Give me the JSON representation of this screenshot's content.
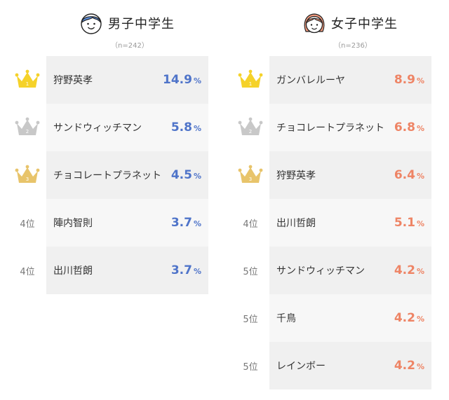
{
  "colors": {
    "gold": "#f5d22a",
    "silver": "#c8c8c8",
    "bronze": "#e8c46b",
    "boys_accent": "#4f74c9",
    "girls_accent": "#ee8465",
    "boy_icon": "#5a8fe0",
    "girl_icon": "#f29a7e"
  },
  "boys": {
    "title": "男子中学生",
    "sample": "（n=242）",
    "icon": "boy-face-icon",
    "rows": [
      {
        "rank_icon": "gold-crown-icon",
        "rank_label": "",
        "name": "狩野英孝",
        "pct": "14.9",
        "unit": "%"
      },
      {
        "rank_icon": "silver-crown-icon",
        "rank_label": "",
        "name": "サンドウィッチマン",
        "pct": "5.8",
        "unit": "%"
      },
      {
        "rank_icon": "bronze-crown-icon",
        "rank_label": "",
        "name": "チョコレートプラネット",
        "pct": "4.5",
        "unit": "%"
      },
      {
        "rank_icon": "",
        "rank_label": "4位",
        "name": "陣内智則",
        "pct": "3.7",
        "unit": "%"
      },
      {
        "rank_icon": "",
        "rank_label": "4位",
        "name": "出川哲朗",
        "pct": "3.7",
        "unit": "%"
      }
    ]
  },
  "girls": {
    "title": "女子中学生",
    "sample": "（n=236）",
    "icon": "girl-face-icon",
    "rows": [
      {
        "rank_icon": "gold-crown-icon",
        "rank_label": "",
        "name": "ガンバレルーヤ",
        "pct": "8.9",
        "unit": "%"
      },
      {
        "rank_icon": "silver-crown-icon",
        "rank_label": "",
        "name": "チョコレートプラネット",
        "pct": "6.8",
        "unit": "%"
      },
      {
        "rank_icon": "bronze-crown-icon",
        "rank_label": "",
        "name": "狩野英孝",
        "pct": "6.4",
        "unit": "%"
      },
      {
        "rank_icon": "",
        "rank_label": "4位",
        "name": "出川哲朗",
        "pct": "5.1",
        "unit": "%"
      },
      {
        "rank_icon": "",
        "rank_label": "5位",
        "name": "サンドウィッチマン",
        "pct": "4.2",
        "unit": "%"
      },
      {
        "rank_icon": "",
        "rank_label": "5位",
        "name": "千鳥",
        "pct": "4.2",
        "unit": "%"
      },
      {
        "rank_icon": "",
        "rank_label": "5位",
        "name": "レインボー",
        "pct": "4.2",
        "unit": "%"
      }
    ]
  }
}
